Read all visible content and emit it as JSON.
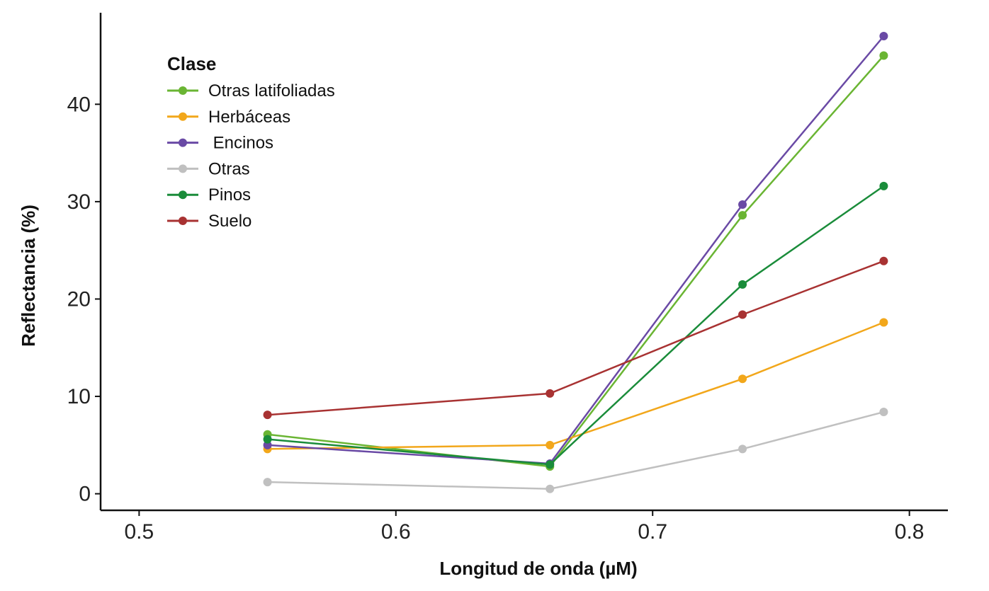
{
  "chart_data": {
    "type": "line",
    "title": "",
    "xlabel": "Longitud de onda (µM)",
    "ylabel": "Reflectancia (%)",
    "xlim": [
      0.485,
      0.815
    ],
    "ylim": [
      -1.7,
      49.4
    ],
    "xticks": [
      0.5,
      0.6,
      0.7,
      0.8
    ],
    "xtick_labels": [
      "0.5",
      "0.6",
      "0.7",
      "0.8"
    ],
    "yticks": [
      0,
      10,
      20,
      30,
      40
    ],
    "ytick_labels": [
      "0",
      "10",
      "20",
      "30",
      "40"
    ],
    "grid": false,
    "x": [
      0.55,
      0.66,
      0.735,
      0.79
    ],
    "legend": {
      "title": "Clase",
      "position": "top-left"
    },
    "series": [
      {
        "name": "Otras latifoliadas",
        "color": "#6ab533",
        "values": [
          6.1,
          2.8,
          28.6,
          45.0
        ]
      },
      {
        "name": "Herbáceas",
        "color": "#f2a71b",
        "values": [
          4.6,
          5.0,
          11.8,
          17.6
        ]
      },
      {
        "name": " Encinos",
        "color": "#6a4aa5",
        "values": [
          5.0,
          3.1,
          29.7,
          47.0
        ]
      },
      {
        "name": "Otras",
        "color": "#c0c0c0",
        "values": [
          1.2,
          0.5,
          4.6,
          8.4
        ]
      },
      {
        "name": "Pinos",
        "color": "#1a8c3a",
        "values": [
          5.6,
          3.0,
          21.5,
          31.6
        ]
      },
      {
        "name": "Suelo",
        "color": "#a83232",
        "values": [
          8.1,
          10.3,
          18.4,
          23.9
        ]
      }
    ]
  }
}
